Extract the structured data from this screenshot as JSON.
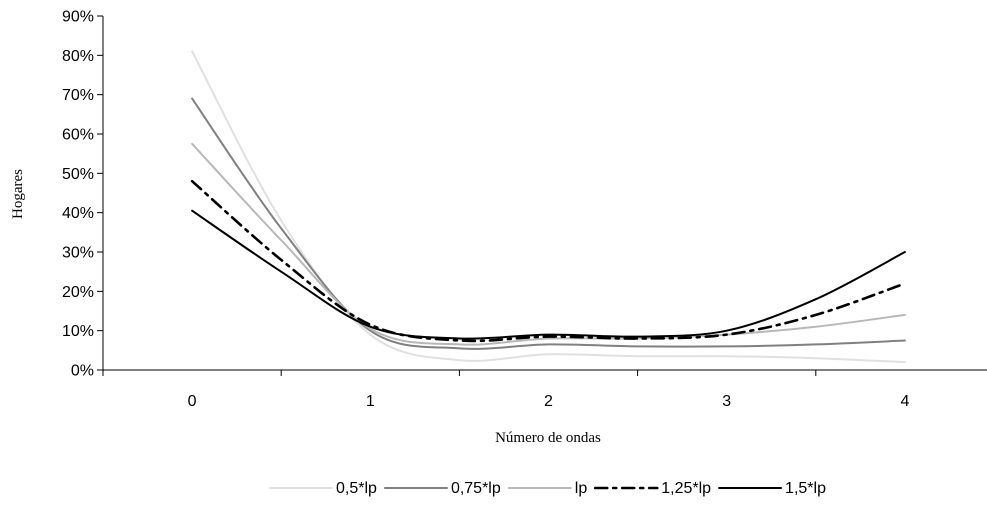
{
  "chart_data": {
    "type": "line",
    "title": "",
    "xlabel": "Número de ondas",
    "ylabel": "Hogares",
    "x": [
      0,
      0.5,
      1,
      1.5,
      2,
      2.5,
      3,
      3.5,
      4
    ],
    "x_ticks": [
      "0",
      "1",
      "2",
      "3",
      "4"
    ],
    "y_ticks": [
      "0%",
      "10%",
      "20%",
      "30%",
      "40%",
      "50%",
      "60%",
      "70%",
      "80%",
      "90%"
    ],
    "ylim": [
      0,
      90
    ],
    "xlim": [
      -0.5,
      4.5
    ],
    "grid": false,
    "legend_position": "bottom",
    "series": [
      {
        "name": "0,5*lp",
        "color": "#e0e0e0",
        "dash": "solid",
        "values": [
          81,
          38,
          9,
          2.5,
          4,
          3.5,
          3.5,
          3,
          2
        ]
      },
      {
        "name": "0,75*lp",
        "color": "#808080",
        "dash": "solid",
        "values": [
          69,
          36,
          10,
          5.5,
          6.5,
          6,
          6,
          6.5,
          7.5
        ]
      },
      {
        "name": "lp",
        "color": "#b8b8b8",
        "dash": "solid",
        "values": [
          57.5,
          33,
          10.5,
          6.5,
          8,
          8,
          9,
          11,
          14
        ]
      },
      {
        "name": "1,25*lp",
        "color": "#000000",
        "dash": "dashdot",
        "values": [
          48,
          28,
          11.5,
          7.5,
          8.5,
          8,
          9,
          14,
          22
        ]
      },
      {
        "name": "1,5*lp",
        "color": "#000000",
        "dash": "solid",
        "values": [
          40.5,
          25,
          11,
          8,
          9,
          8.5,
          10,
          18,
          30
        ]
      }
    ]
  }
}
